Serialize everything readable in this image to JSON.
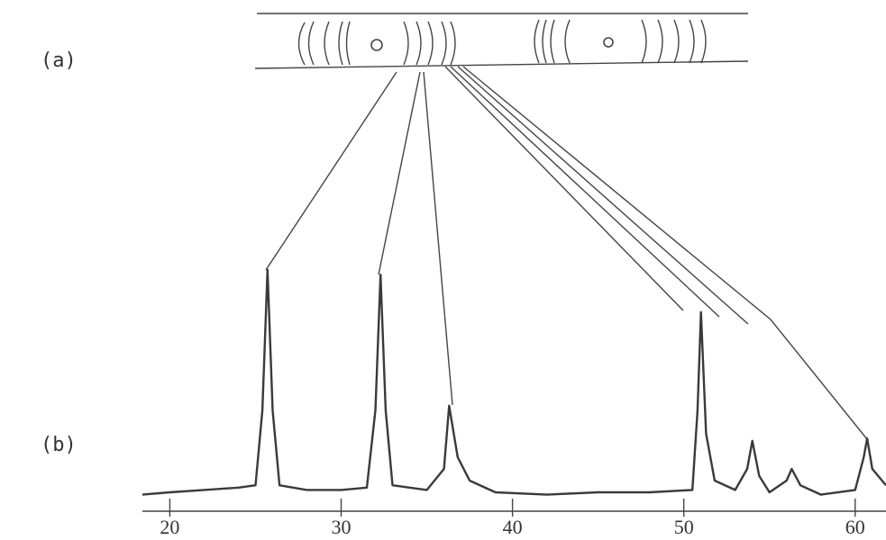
{
  "chart_data": {
    "type": "line",
    "annotations": [
      "(a)",
      "(b)"
    ],
    "x": [
      18.4,
      20,
      22,
      24,
      25,
      25.4,
      25.7,
      26.0,
      26.4,
      28,
      30,
      31.5,
      32.0,
      32.3,
      32.6,
      33,
      35,
      36.0,
      36.3,
      36.8,
      37.5,
      39,
      42,
      45,
      48,
      50.5,
      50.8,
      51.0,
      51.3,
      51.8,
      53,
      53.7,
      54.0,
      54.4,
      55,
      56.0,
      56.3,
      56.8,
      58,
      60,
      60.5,
      60.7,
      61,
      61.8
    ],
    "values": [
      4,
      5,
      6,
      7,
      8,
      40,
      100,
      40,
      8,
      6,
      6,
      7,
      40,
      98,
      40,
      8,
      6,
      15,
      42,
      20,
      10,
      5,
      4,
      5,
      5,
      6,
      40,
      82,
      30,
      10,
      6,
      15,
      27,
      12,
      5,
      10,
      15,
      8,
      4,
      6,
      20,
      28,
      15,
      8
    ],
    "color": "#3a3a3a",
    "xlim": [
      18.4,
      61.8
    ],
    "xticks": [
      20,
      30,
      40,
      50,
      60
    ],
    "ylim": [
      0,
      100
    ]
  }
}
